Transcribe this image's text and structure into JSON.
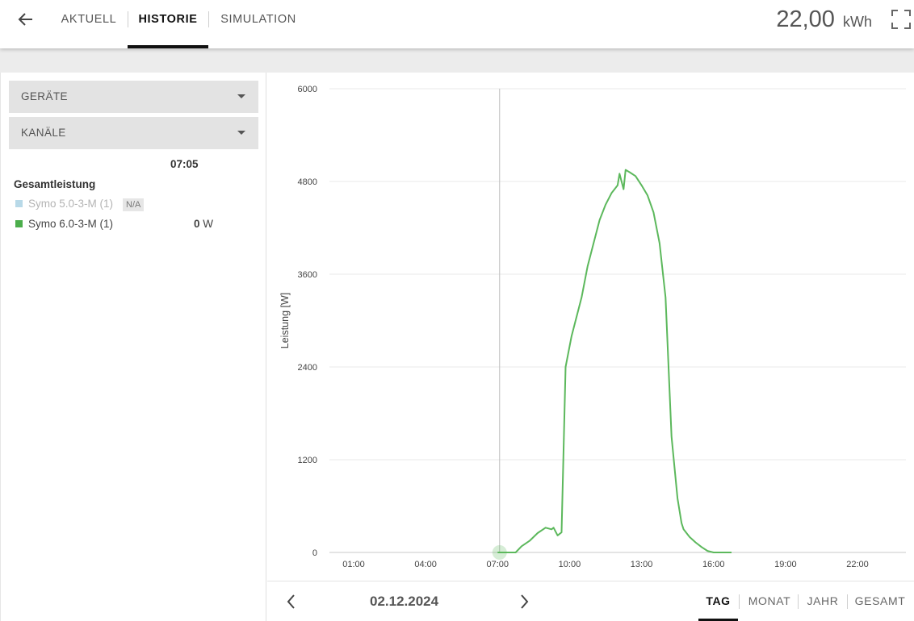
{
  "header": {
    "tabs": [
      {
        "label": "AKTUELL",
        "active": false
      },
      {
        "label": "HISTORIE",
        "active": true
      },
      {
        "label": "SIMULATION",
        "active": false
      }
    ],
    "energy_value": "22,00",
    "energy_unit": "kWh",
    "icons": {
      "back": "arrow-left-icon",
      "fullscreen": "fullscreen-icon"
    }
  },
  "sidebar": {
    "devices_dropdown": "GERÄTE",
    "channels_dropdown": "KANÄLE",
    "cursor_time": "07:05",
    "group_title": "Gesamtleistung",
    "devices": [
      {
        "name": "Symo 5.0-3-M (1)",
        "badge": "N/A",
        "color": "#b8d9e8",
        "available": false
      },
      {
        "name": "Symo 6.0-3-M (1)",
        "value": "0",
        "unit": "W",
        "color": "#4cae4c",
        "available": true
      }
    ]
  },
  "chart_data": {
    "type": "line",
    "ylabel": "Leistung [W]",
    "xlabel": "",
    "ylim": [
      0,
      6000
    ],
    "yticks": [
      "0",
      "1200",
      "2400",
      "3600",
      "4800",
      "6000"
    ],
    "xticks": [
      "01:00",
      "04:00",
      "07:00",
      "10:00",
      "13:00",
      "16:00",
      "19:00",
      "22:00"
    ],
    "grid": true,
    "cursor_time": "07:05",
    "series": [
      {
        "color": "#5cb85c",
        "x": [
          "07:00",
          "07:45",
          "08:00",
          "08:20",
          "08:40",
          "09:00",
          "09:15",
          "09:20",
          "09:30",
          "09:40",
          "09:50",
          "10:05",
          "10:30",
          "10:45",
          "11:00",
          "11:15",
          "11:30",
          "11:45",
          "12:00",
          "12:05",
          "12:15",
          "12:20",
          "12:30",
          "12:45",
          "13:00",
          "13:15",
          "13:30",
          "13:45",
          "14:00",
          "14:15",
          "14:30",
          "14:40",
          "14:45",
          "15:00",
          "15:15",
          "15:30",
          "15:45",
          "16:00",
          "16:15",
          "16:45"
        ],
        "values": [
          0,
          0,
          80,
          150,
          250,
          320,
          300,
          320,
          220,
          260,
          2400,
          2800,
          3300,
          3700,
          4000,
          4300,
          4500,
          4650,
          4750,
          4900,
          4700,
          4950,
          4920,
          4870,
          4750,
          4620,
          4400,
          4000,
          3300,
          1500,
          700,
          380,
          300,
          200,
          130,
          70,
          20,
          0,
          0,
          0
        ]
      }
    ]
  },
  "footer": {
    "date": "02.12.2024",
    "periods": [
      {
        "label": "TAG",
        "active": true
      },
      {
        "label": "MONAT",
        "active": false
      },
      {
        "label": "JAHR",
        "active": false
      },
      {
        "label": "GESAMT",
        "active": false
      }
    ]
  }
}
